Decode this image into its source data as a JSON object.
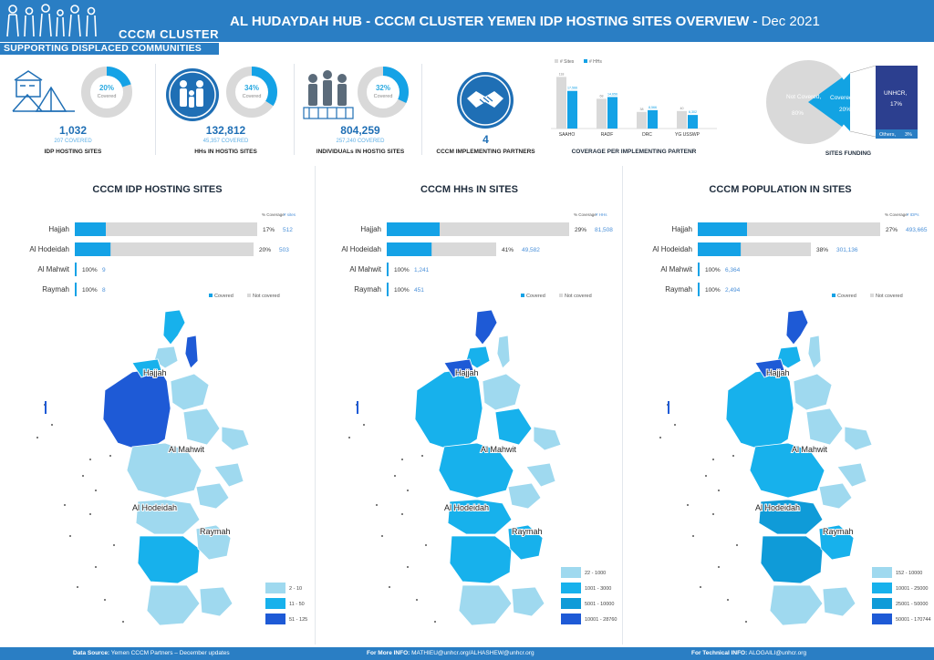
{
  "header": {
    "cluster_name": "CCCM CLUSTER",
    "tagline": "SUPPORTING DISPLACED COMMUNITIES",
    "title": "AL HUDAYDAH HUB - CCCM CLUSTER YEMEN IDP HOSTING SITES OVERVIEW -",
    "date": " Dec  2021"
  },
  "kpis": [
    {
      "percent": "20%",
      "donut_sub": "Covered",
      "fraction": 0.2,
      "value": "1,032",
      "covered": "207 COVERED",
      "label": "IDP HOSTING SITES",
      "icon": "camp-icon"
    },
    {
      "percent": "34%",
      "donut_sub": "Covered",
      "fraction": 0.34,
      "value": "132,812",
      "covered": "45,357 COVERED",
      "label": "HHs  IN  HOSTIG SITES",
      "icon": "family-icon"
    },
    {
      "percent": "32%",
      "donut_sub": "Covered",
      "fraction": 0.32,
      "value": "804,259",
      "covered": "257,240 COVERED",
      "label": "INDIVIDUALs  IN  HOSTIG SITES",
      "icon": "individuals-icon"
    },
    {
      "value": "4",
      "label": "CCCM IMPLEMENTING PARTNERS",
      "icon": "handshake-icon"
    }
  ],
  "partner_chart": {
    "title": "COVERAGE PER IMPLEMENTING PARTENR",
    "chart_data": {
      "type": "bar",
      "categories": [
        "SAAHO",
        "RADF",
        "DRC",
        "YG USSWP"
      ],
      "series": [
        {
          "name": "# Sites",
          "values": [
            "118",
            "68",
            "38",
            "40"
          ],
          "heights": [
            118,
            68,
            38,
            40
          ]
        },
        {
          "name": "# HHs",
          "values": [
            "17,566",
            "14,656",
            "8,566",
            "6,302"
          ],
          "heights": [
            86,
            72,
            42,
            31
          ]
        }
      ],
      "colors": [
        "#d9d9d9",
        "#14a2e6"
      ]
    }
  },
  "funding": {
    "title": "SITES FUNDING",
    "chart_data": {
      "type": "pie",
      "slices": [
        {
          "label": "Not Covered,",
          "pct": "80%",
          "value": 80,
          "color": "#d9d9d9"
        },
        {
          "label": "Covered,",
          "pct": "20%",
          "value": 20,
          "color": "#12a3e3"
        }
      ],
      "breakdown": [
        {
          "label": "UNHCR,",
          "pct": "17%",
          "value": 17,
          "color": "#2c3f8f"
        },
        {
          "label": "Others,",
          "pct": "3%",
          "value": 3,
          "color": "#2a7ec4"
        }
      ]
    }
  },
  "sections": [
    {
      "title": "CCCM IDP HOSTING SITES",
      "legend_head": [
        "% Coverage",
        "# sites"
      ],
      "legend": [
        "Covered",
        "Not covered"
      ],
      "chart_data": {
        "type": "bar",
        "categories": [
          "Hajjah",
          "Al Hodeidah",
          "Al Mahwit",
          "Raymah"
        ],
        "coverage_pct": [
          17,
          20,
          100,
          100
        ],
        "pct_labels": [
          "17%",
          "20%",
          "100%",
          "100%"
        ],
        "totals": [
          "512",
          "503",
          "9",
          "8"
        ],
        "bar_len": [
          1,
          0.98,
          0.015,
          0.015
        ]
      },
      "map_legend": [
        {
          "label": "2 - 10",
          "color": "#9fd9ef"
        },
        {
          "label": "11 - 50",
          "color": "#17b1ec"
        },
        {
          "label": "51 - 125",
          "color": "#1e5ad6"
        }
      ],
      "places": [
        "Hajjah",
        "Al Mahwit",
        "Al Hodeidah",
        "Raymah"
      ]
    },
    {
      "title": "CCCM HHs  IN  SITES",
      "legend_head": [
        "% Coverage",
        "# HHs"
      ],
      "legend": [
        "Covered",
        "Not covered"
      ],
      "chart_data": {
        "type": "bar",
        "categories": [
          "Hajjah",
          "Al Hodeidah",
          "Al Mahwit",
          "Raymah"
        ],
        "coverage_pct": [
          29,
          41,
          100,
          100
        ],
        "pct_labels": [
          "29%",
          "41%",
          "100%",
          "100%"
        ],
        "totals": [
          "81,508",
          "49,582",
          "1,241",
          "451"
        ],
        "bar_len": [
          1,
          0.6,
          0.015,
          0.01
        ]
      },
      "map_legend": [
        {
          "label": "22 - 1000",
          "color": "#9fd9ef"
        },
        {
          "label": "1001 - 3000",
          "color": "#17b1ec"
        },
        {
          "label": "5001 - 10000",
          "color": "#0f9bd8"
        },
        {
          "label": "10001 - 28760",
          "color": "#1e5ad6"
        }
      ],
      "places": [
        "Hajjah",
        "Al Mahwit",
        "Al Hodeidah",
        "Raymah"
      ]
    },
    {
      "title": "CCCM POPULATION IN  SITES",
      "legend_head": [
        "% Coverage",
        "# IDPs"
      ],
      "legend": [
        "Covered",
        "Not covered"
      ],
      "chart_data": {
        "type": "bar",
        "categories": [
          "Hajjah",
          "Al Hodeidah",
          "Al Mahwit",
          "Raymah"
        ],
        "coverage_pct": [
          27,
          38,
          100,
          100
        ],
        "pct_labels": [
          "27%",
          "38%",
          "100%",
          "100%"
        ],
        "totals": [
          "493,665",
          "301,136",
          "6,364",
          "2,494"
        ],
        "bar_len": [
          1,
          0.62,
          0.015,
          0.01
        ]
      },
      "map_legend": [
        {
          "label": "152 - 10000",
          "color": "#9fd9ef"
        },
        {
          "label": "10001 - 25000",
          "color": "#17b1ec"
        },
        {
          "label": "25001 - 50000",
          "color": "#0f9bd8"
        },
        {
          "label": "50001 - 170744",
          "color": "#1e5ad6"
        }
      ],
      "places": [
        "Hajjah",
        "Al Mahwit",
        "Al Hodeidah",
        "Raymah"
      ]
    }
  ],
  "footer": {
    "source_label": "Data Source:",
    "source_text": " Yemen CCCM Partners – December updates",
    "info_label": "For More INFO:",
    "info_text": " MATHIEU@unhcr.org/ALHASHEW@unhcr.org",
    "tech_label": "For Technical INFO:",
    "tech_text": " ALOGAILI@unhcr.org"
  }
}
